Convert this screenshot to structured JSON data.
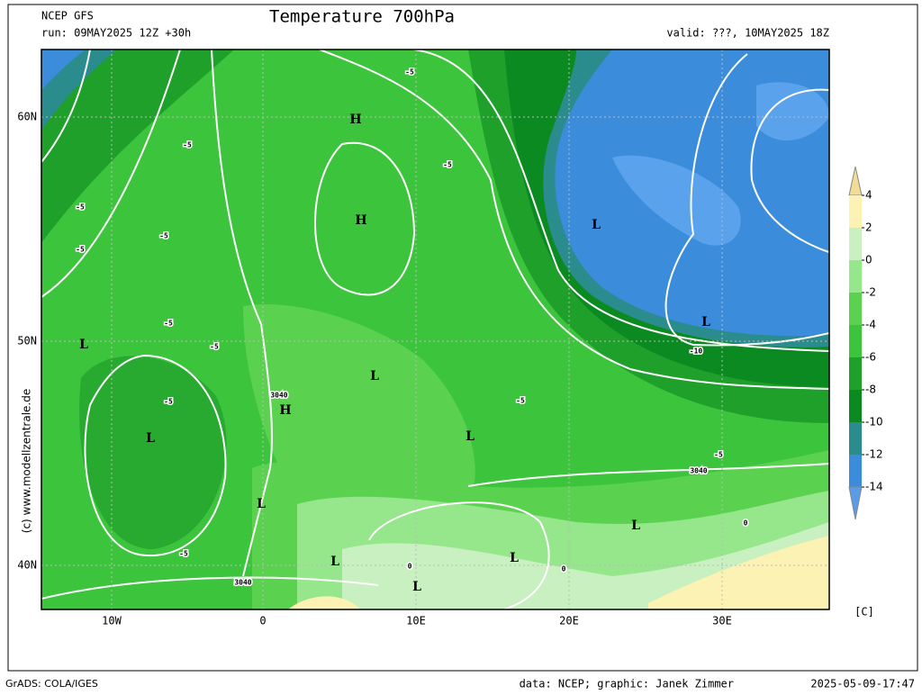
{
  "header": {
    "model": "NCEP GFS",
    "run": "run: 09MAY2025 12Z +30h",
    "title": "Temperature 700hPa",
    "valid": "valid: ???, 10MAY2025 18Z"
  },
  "map": {
    "lat_labels": [
      "60N",
      "50N",
      "40N"
    ],
    "lon_labels": [
      "10W",
      "0",
      "10E",
      "20E",
      "30E"
    ],
    "pressure_centers": [
      "H",
      "H",
      "H",
      "L",
      "L",
      "L",
      "L",
      "L",
      "L",
      "L",
      "L",
      "L",
      "L",
      "L"
    ],
    "contour_labels": [
      "-5",
      "-5",
      "-5",
      "-5",
      "-5",
      "-5",
      "-5",
      "-5",
      "-5",
      "-5",
      "-5",
      "-5",
      "3040",
      "3040",
      "3040",
      "-10",
      "0",
      "0",
      "0"
    ],
    "copyright": "(c) www.modellzentrale.de"
  },
  "colorbar": {
    "levels": [
      4,
      2,
      0,
      -2,
      -4,
      -6,
      -8,
      -10,
      -12,
      -14
    ],
    "colors": [
      "#f2dc96",
      "#fbf2b4",
      "#c8f0c0",
      "#96e68c",
      "#5ad250",
      "#3cc43c",
      "#1ea02a",
      "#0a8a20",
      "#2a8c8c",
      "#3c8cdc",
      "#5a9ce8"
    ],
    "unit": "[C]"
  },
  "footer": {
    "software": "GrADS: COLA/IGES",
    "credits": "data: NCEP; graphic: Janek Zimmer",
    "timestamp": "2025-05-09-17:47"
  }
}
